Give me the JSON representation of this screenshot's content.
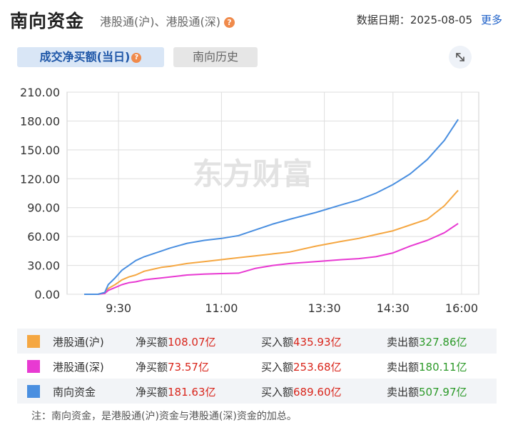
{
  "header": {
    "title": "南向资金",
    "subtitle": "港股通(沪)、港股通(深)",
    "help_glyph": "?",
    "date_label": "数据日期：",
    "date_value": "2025-08-05",
    "more_label": "更多"
  },
  "tabs": [
    {
      "label": "成交净买额(当日)",
      "active": true
    },
    {
      "label": "南向历史",
      "active": false
    }
  ],
  "watermark": "东方财富",
  "chart_data": {
    "type": "line",
    "ylim": [
      0,
      210
    ],
    "yticks": [
      "0.00",
      "30.00",
      "60.00",
      "90.00",
      "120.00",
      "150.00",
      "180.00",
      "210.00"
    ],
    "xticks": [
      "9:30",
      "11:00",
      "13:30",
      "14:30",
      "16:00"
    ],
    "xlabel": "",
    "ylabel": "",
    "grid": true,
    "series": [
      {
        "name": "港股通(沪)",
        "color": "#f5a742",
        "points": [
          [
            0,
            0
          ],
          [
            8,
            0
          ],
          [
            12,
            1
          ],
          [
            14,
            6
          ],
          [
            18,
            10
          ],
          [
            22,
            15
          ],
          [
            26,
            18
          ],
          [
            30,
            20
          ],
          [
            35,
            24
          ],
          [
            40,
            26
          ],
          [
            45,
            28
          ],
          [
            50,
            29
          ],
          [
            60,
            32
          ],
          [
            70,
            34
          ],
          [
            80,
            36
          ],
          [
            90,
            38
          ],
          [
            100,
            40
          ],
          [
            110,
            42
          ],
          [
            120,
            44
          ],
          [
            135,
            50
          ],
          [
            150,
            55
          ],
          [
            160,
            58
          ],
          [
            170,
            62
          ],
          [
            180,
            66
          ],
          [
            190,
            72
          ],
          [
            200,
            78
          ],
          [
            210,
            92
          ],
          [
            218,
            108.07
          ]
        ]
      },
      {
        "name": "港股通(深)",
        "color": "#e83ad2",
        "points": [
          [
            0,
            0
          ],
          [
            8,
            0
          ],
          [
            12,
            1
          ],
          [
            14,
            4
          ],
          [
            18,
            7
          ],
          [
            22,
            10
          ],
          [
            26,
            12
          ],
          [
            30,
            13
          ],
          [
            35,
            15
          ],
          [
            40,
            16
          ],
          [
            45,
            17
          ],
          [
            50,
            18
          ],
          [
            60,
            20
          ],
          [
            70,
            21
          ],
          [
            80,
            21.5
          ],
          [
            90,
            22
          ],
          [
            100,
            27
          ],
          [
            110,
            30
          ],
          [
            120,
            32
          ],
          [
            135,
            34
          ],
          [
            150,
            36
          ],
          [
            160,
            37
          ],
          [
            170,
            39
          ],
          [
            180,
            43
          ],
          [
            190,
            50
          ],
          [
            200,
            56
          ],
          [
            210,
            64
          ],
          [
            218,
            73.57
          ]
        ]
      },
      {
        "name": "南向资金",
        "color": "#4a8fe0",
        "points": [
          [
            0,
            0
          ],
          [
            8,
            0
          ],
          [
            12,
            2
          ],
          [
            14,
            10
          ],
          [
            18,
            17
          ],
          [
            22,
            25
          ],
          [
            26,
            30
          ],
          [
            30,
            35
          ],
          [
            35,
            39
          ],
          [
            40,
            42
          ],
          [
            45,
            45
          ],
          [
            50,
            48
          ],
          [
            60,
            53
          ],
          [
            70,
            56
          ],
          [
            80,
            58
          ],
          [
            90,
            61
          ],
          [
            100,
            67
          ],
          [
            110,
            73
          ],
          [
            120,
            78
          ],
          [
            135,
            85
          ],
          [
            150,
            93
          ],
          [
            160,
            98
          ],
          [
            170,
            105
          ],
          [
            180,
            114
          ],
          [
            190,
            125
          ],
          [
            200,
            140
          ],
          [
            210,
            160
          ],
          [
            218,
            181.63
          ]
        ]
      }
    ]
  },
  "legend": [
    {
      "name": "港股通(沪)",
      "color": "#f5a742",
      "net_label": "净买额",
      "net_value": "108.07亿",
      "buy_label": "买入额",
      "buy_value": "435.93亿",
      "sell_label": "卖出额",
      "sell_value": "327.86亿"
    },
    {
      "name": "港股通(深)",
      "color": "#e83ad2",
      "net_label": "净买额",
      "net_value": "73.57亿",
      "buy_label": "买入额",
      "buy_value": "253.68亿",
      "sell_label": "卖出额",
      "sell_value": "180.11亿"
    },
    {
      "name": "南向资金",
      "color": "#4a8fe0",
      "net_label": "净买额",
      "net_value": "181.63亿",
      "buy_label": "买入额",
      "buy_value": "689.60亿",
      "sell_label": "卖出额",
      "sell_value": "507.97亿"
    }
  ],
  "note": "注：南向资金，是港股通(沪)资金与港股通(深)资金的加总。"
}
